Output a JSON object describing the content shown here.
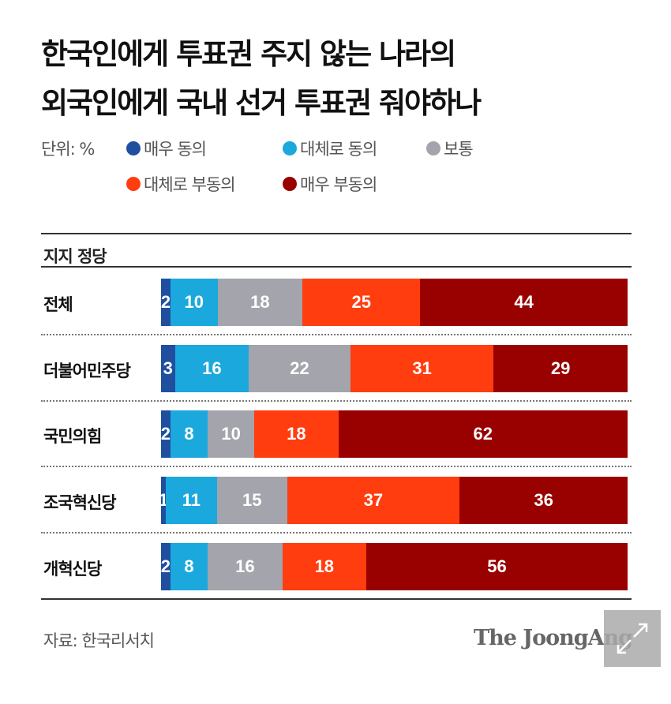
{
  "title_lines": [
    "한국인에게 투표권 주지 않는 나라의",
    "외국인에게 국내 선거 투표권 줘야하나"
  ],
  "unit_label": "단위: %",
  "group_label": "지지 정당",
  "source": "자료: 한국리서치",
  "logo": "The JoongAng",
  "expand_icon": "expand-arrows-icon",
  "chart_data": {
    "type": "bar",
    "stacked": true,
    "orientation": "horizontal",
    "title": "한국인에게 투표권 주지 않는 나라의 외국인에게 국내 선거 투표권 줘야하나",
    "unit": "%",
    "categories": [
      "전체",
      "더불어민주당",
      "국민의힘",
      "조국혁신당",
      "개혁신당"
    ],
    "series": [
      {
        "name": "매우 동의",
        "color": "#1f4f9e",
        "values": [
          2,
          3,
          2,
          1,
          2
        ]
      },
      {
        "name": "대체로 동의",
        "color": "#1ba8dd",
        "values": [
          10,
          16,
          8,
          11,
          8
        ]
      },
      {
        "name": "보통",
        "color": "#a4a4ac",
        "values": [
          18,
          22,
          10,
          15,
          16
        ]
      },
      {
        "name": "대체로 부동의",
        "color": "#ff3d0f",
        "values": [
          25,
          31,
          18,
          37,
          18
        ]
      },
      {
        "name": "매우 부동의",
        "color": "#990000",
        "values": [
          44,
          29,
          62,
          36,
          56
        ]
      }
    ],
    "legend": "top-left"
  }
}
